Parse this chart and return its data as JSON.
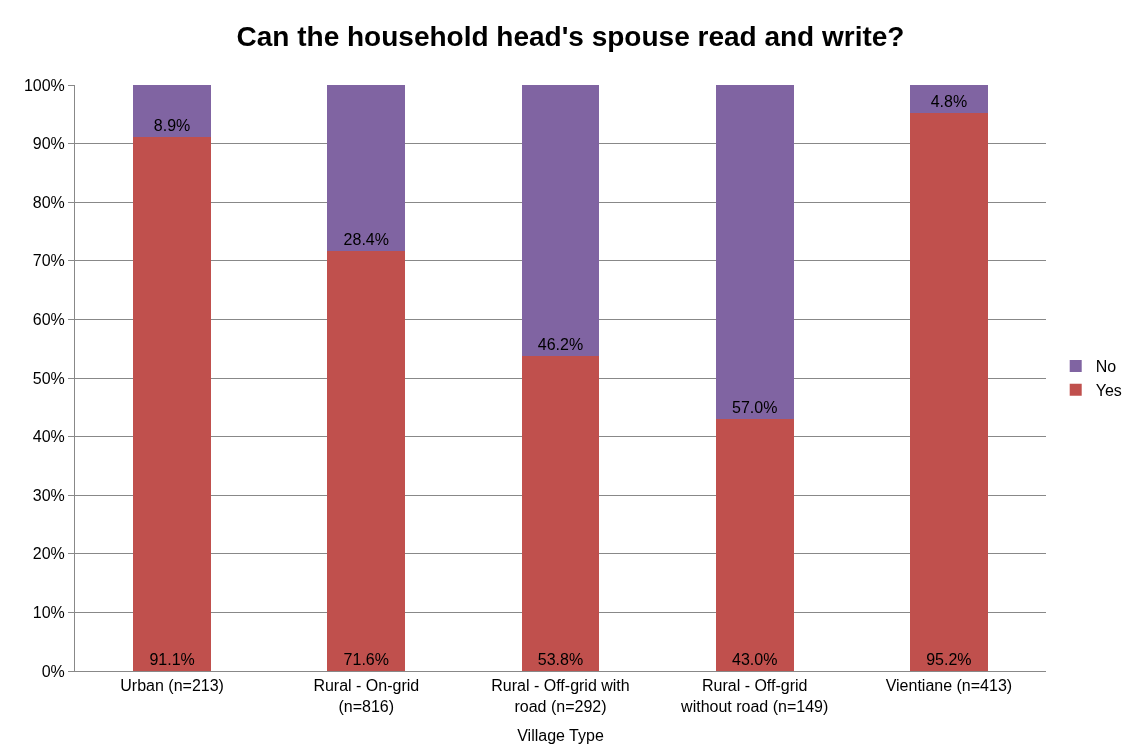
{
  "chart_data": {
    "type": "bar",
    "title": "Can the household head's spouse read and write?",
    "xlabel": "Village Type",
    "categories": [
      "Urban (n=213)",
      "Rural - On-grid (n=816)",
      "Rural - Off-grid with road (n=292)",
      "Rural - Off-grid without road (n=149)",
      "Vientiane (n=413)"
    ],
    "stacked": true,
    "series": [
      {
        "name": "Yes",
        "color": "#c0504d",
        "values": [
          91.1,
          71.6,
          53.8,
          43.0,
          95.2
        ],
        "value_labels": [
          "91.1%",
          "71.6%",
          "53.8%",
          "43.0%",
          "95.2%"
        ]
      },
      {
        "name": "No",
        "color": "#8064a2",
        "values": [
          8.9,
          28.4,
          46.2,
          57.0,
          4.8
        ],
        "value_labels": [
          "8.9%",
          "28.4%",
          "46.2%",
          "57.0%",
          "4.8%"
        ]
      }
    ],
    "ylim": [
      0,
      100
    ],
    "yticks": [
      {
        "value": 0,
        "label": "0%"
      },
      {
        "value": 10,
        "label": "10%"
      },
      {
        "value": 20,
        "label": "20%"
      },
      {
        "value": 30,
        "label": "30%"
      },
      {
        "value": 40,
        "label": "40%"
      },
      {
        "value": 50,
        "label": "50%"
      },
      {
        "value": 60,
        "label": "60%"
      },
      {
        "value": 70,
        "label": "70%"
      },
      {
        "value": 80,
        "label": "80%"
      },
      {
        "value": 90,
        "label": "90%"
      },
      {
        "value": 100,
        "label": "100%"
      }
    ],
    "grid": "y",
    "legend": "right"
  }
}
